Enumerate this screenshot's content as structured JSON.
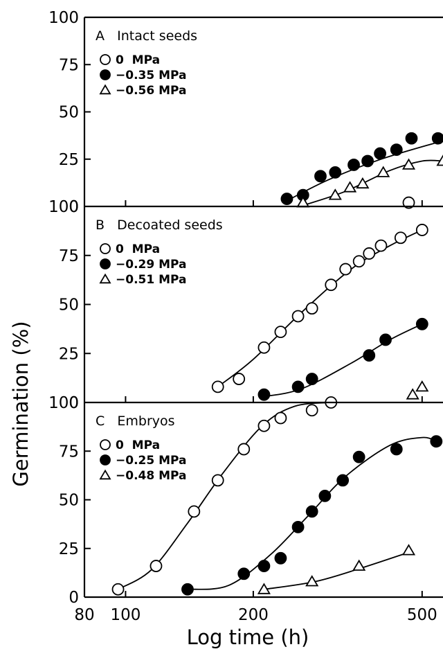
{
  "figure": {
    "ylabel": "Germination (%)",
    "xlabel": "Log time (h)",
    "x_ticks": [
      80,
      100,
      200,
      500
    ],
    "x_tick_labels": [
      "80",
      "100",
      "200",
      "500"
    ],
    "y_tick_labels": [
      "0",
      "25",
      "50",
      "75",
      "100"
    ]
  },
  "chart_data": [
    {
      "type": "scatter",
      "panel": "A",
      "title": "A   Intact seeds",
      "x_scale": "log",
      "xlim": [
        80,
        560
      ],
      "ylim": [
        0,
        100
      ],
      "series": [
        {
          "name": "0  MPa",
          "marker": "open-circle",
          "x": [
            465
          ],
          "y": [
            2
          ],
          "curve": []
        },
        {
          "name": "−0.35 MPa",
          "marker": "filled-circle",
          "x": [
            240,
            262,
            288,
            312,
            345,
            372,
            398,
            435,
            472,
            545
          ],
          "y": [
            4,
            6,
            16,
            18,
            22,
            24,
            28,
            30,
            36,
            36
          ],
          "curve": [
            [
              240,
              3
            ],
            [
              300,
              14
            ],
            [
              400,
              25
            ],
            [
              545,
              34
            ]
          ]
        },
        {
          "name": "−0.56 MPa",
          "marker": "open-triangle",
          "x": [
            262,
            312,
            338,
            362,
            405,
            465,
            560
          ],
          "y": [
            2,
            6,
            10,
            12,
            18,
            22,
            24
          ],
          "curve": [
            [
              262,
              0.5
            ],
            [
              330,
              8
            ],
            [
              420,
              19
            ],
            [
              500,
              24
            ],
            [
              560,
              24
            ]
          ]
        }
      ]
    },
    {
      "type": "scatter",
      "panel": "B",
      "title": "B   Decoated seeds",
      "x_scale": "log",
      "xlim": [
        80,
        560
      ],
      "ylim": [
        0,
        100
      ],
      "series": [
        {
          "name": "0  MPa",
          "marker": "open-circle",
          "x": [
            165,
            185,
            212,
            232,
            255,
            275,
            305,
            330,
            355,
            375,
            400,
            445,
            500
          ],
          "y": [
            8,
            12,
            28,
            36,
            44,
            48,
            60,
            68,
            72,
            76,
            80,
            84,
            88
          ],
          "curve": [
            [
              165,
              8
            ],
            [
              200,
              22
            ],
            [
              260,
              46
            ],
            [
              340,
              68
            ],
            [
              420,
              80
            ],
            [
              500,
              88
            ]
          ]
        },
        {
          "name": "−0.29 MPa",
          "marker": "filled-circle",
          "x": [
            212,
            255,
            275,
            375,
            410,
            500
          ],
          "y": [
            4,
            8,
            12,
            24,
            32,
            40
          ],
          "curve": [
            [
              212,
              3
            ],
            [
              260,
              7
            ],
            [
              340,
              20
            ],
            [
              420,
              32
            ],
            [
              500,
              40
            ]
          ]
        },
        {
          "name": "−0.51 MPa",
          "marker": "open-triangle",
          "x": [
            475,
            500
          ],
          "y": [
            4,
            8
          ],
          "curve": []
        }
      ]
    },
    {
      "type": "scatter",
      "panel": "C",
      "title": "C   Embryos",
      "x_scale": "log",
      "xlim": [
        80,
        560
      ],
      "ylim": [
        0,
        100
      ],
      "series": [
        {
          "name": "0  MPa",
          "marker": "open-circle",
          "x": [
            96,
            118,
            145,
            165,
            190,
            212,
            232,
            275,
            305
          ],
          "y": [
            4,
            16,
            44,
            60,
            76,
            88,
            92,
            96,
            100
          ],
          "curve": [
            [
              96,
              4
            ],
            [
              115,
              14
            ],
            [
              140,
              38
            ],
            [
              170,
              64
            ],
            [
              210,
              88
            ],
            [
              250,
              98
            ],
            [
              305,
              100
            ]
          ]
        },
        {
          "name": "−0.25 MPa",
          "marker": "filled-circle",
          "x": [
            140,
            190,
            212,
            232,
            255,
            275,
            295,
            325,
            355,
            435,
            540
          ],
          "y": [
            4,
            12,
            16,
            20,
            36,
            44,
            52,
            60,
            72,
            76,
            80
          ],
          "curve": [
            [
              140,
              4
            ],
            [
              175,
              6
            ],
            [
              220,
              22
            ],
            [
              270,
              42
            ],
            [
              330,
              62
            ],
            [
              420,
              78
            ],
            [
              500,
              82
            ],
            [
              540,
              80
            ]
          ]
        },
        {
          "name": "−0.48 MPa",
          "marker": "open-triangle",
          "x": [
            212,
            275,
            355,
            465
          ],
          "y": [
            4,
            8,
            16,
            24
          ],
          "curve": [
            [
              212,
              4
            ],
            [
              280,
              8
            ],
            [
              360,
              15
            ],
            [
              465,
              23
            ]
          ]
        }
      ]
    }
  ]
}
